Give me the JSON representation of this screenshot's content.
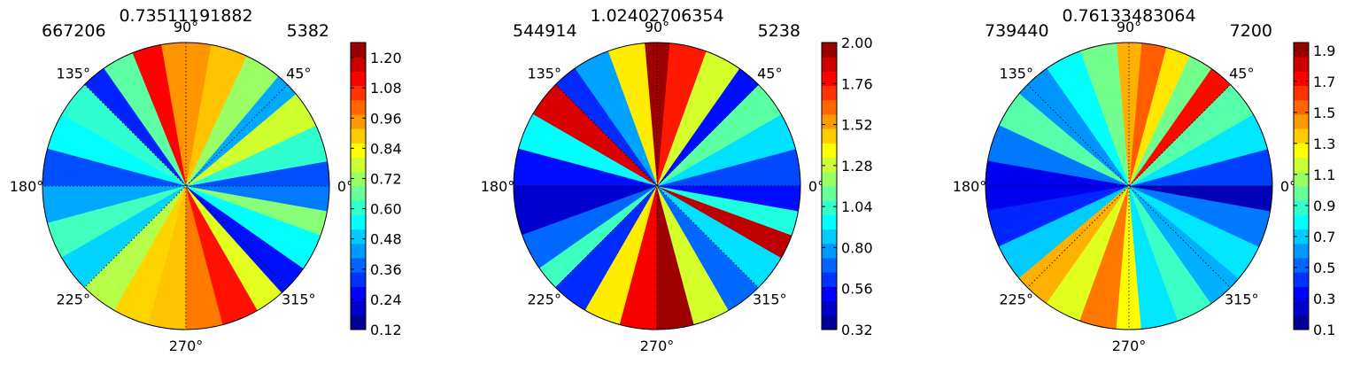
{
  "chart_data": [
    {
      "type": "polar-contour",
      "title": "0.73511191882",
      "corner_left": "667206",
      "corner_right": "5382",
      "angle_labels": [
        "0°",
        "45°",
        "90°",
        "135°",
        "180°",
        "225°",
        "270°",
        "315°"
      ],
      "colorbar_ticks": [
        "0.12",
        "0.24",
        "0.36",
        "0.48",
        "0.60",
        "0.72",
        "0.84",
        "0.96",
        "1.08",
        "1.20"
      ],
      "clim": [
        0.12,
        1.26
      ],
      "radial_grid": false,
      "colormap": "jet",
      "sectors": [
        {
          "start": 0,
          "end": 10,
          "value": 0.35
        },
        {
          "start": 10,
          "end": 25,
          "value": 0.6
        },
        {
          "start": 25,
          "end": 40,
          "value": 0.78
        },
        {
          "start": 40,
          "end": 50,
          "value": 0.45
        },
        {
          "start": 50,
          "end": 65,
          "value": 0.72
        },
        {
          "start": 65,
          "end": 80,
          "value": 0.9
        },
        {
          "start": 80,
          "end": 100,
          "value": 0.95
        },
        {
          "start": 100,
          "end": 112,
          "value": 1.12
        },
        {
          "start": 112,
          "end": 125,
          "value": 0.65
        },
        {
          "start": 125,
          "end": 135,
          "value": 0.3
        },
        {
          "start": 135,
          "end": 150,
          "value": 0.6
        },
        {
          "start": 150,
          "end": 165,
          "value": 0.55
        },
        {
          "start": 165,
          "end": 180,
          "value": 0.35
        },
        {
          "start": 180,
          "end": 195,
          "value": 0.45
        },
        {
          "start": 195,
          "end": 210,
          "value": 0.62
        },
        {
          "start": 210,
          "end": 225,
          "value": 0.5
        },
        {
          "start": 225,
          "end": 240,
          "value": 0.75
        },
        {
          "start": 240,
          "end": 255,
          "value": 0.88
        },
        {
          "start": 255,
          "end": 270,
          "value": 0.9
        },
        {
          "start": 270,
          "end": 285,
          "value": 0.98
        },
        {
          "start": 285,
          "end": 300,
          "value": 1.1
        },
        {
          "start": 300,
          "end": 312,
          "value": 0.8
        },
        {
          "start": 312,
          "end": 325,
          "value": 0.28
        },
        {
          "start": 325,
          "end": 340,
          "value": 0.55
        },
        {
          "start": 340,
          "end": 350,
          "value": 0.7
        },
        {
          "start": 350,
          "end": 360,
          "value": 0.4
        }
      ]
    },
    {
      "type": "polar-contour",
      "title": "1.02402706354",
      "corner_left": "544914",
      "corner_right": "5238",
      "angle_labels": [
        "0°",
        "45°",
        "90°",
        "135°",
        "180°",
        "225°",
        "270°",
        "315°"
      ],
      "colorbar_ticks": [
        "0.32",
        "0.56",
        "0.80",
        "1.04",
        "1.28",
        "1.52",
        "1.76",
        "2.00"
      ],
      "clim": [
        0.32,
        2.0
      ],
      "radial_grid": false,
      "colormap": "jet",
      "sectors": [
        {
          "start": 0,
          "end": 15,
          "value": 0.65
        },
        {
          "start": 15,
          "end": 30,
          "value": 0.9
        },
        {
          "start": 30,
          "end": 45,
          "value": 1.1
        },
        {
          "start": 45,
          "end": 55,
          "value": 0.55
        },
        {
          "start": 55,
          "end": 70,
          "value": 1.3
        },
        {
          "start": 70,
          "end": 85,
          "value": 1.75
        },
        {
          "start": 85,
          "end": 95,
          "value": 1.95
        },
        {
          "start": 95,
          "end": 110,
          "value": 1.4
        },
        {
          "start": 110,
          "end": 125,
          "value": 0.8
        },
        {
          "start": 125,
          "end": 135,
          "value": 0.6
        },
        {
          "start": 135,
          "end": 150,
          "value": 1.85
        },
        {
          "start": 150,
          "end": 165,
          "value": 0.95
        },
        {
          "start": 165,
          "end": 180,
          "value": 0.55
        },
        {
          "start": 180,
          "end": 200,
          "value": 0.45
        },
        {
          "start": 200,
          "end": 215,
          "value": 0.7
        },
        {
          "start": 215,
          "end": 225,
          "value": 1.05
        },
        {
          "start": 225,
          "end": 240,
          "value": 0.6
        },
        {
          "start": 240,
          "end": 255,
          "value": 1.4
        },
        {
          "start": 255,
          "end": 270,
          "value": 1.8
        },
        {
          "start": 270,
          "end": 285,
          "value": 1.95
        },
        {
          "start": 285,
          "end": 300,
          "value": 1.3
        },
        {
          "start": 300,
          "end": 315,
          "value": 0.7
        },
        {
          "start": 315,
          "end": 330,
          "value": 0.9
        },
        {
          "start": 330,
          "end": 340,
          "value": 1.9
        },
        {
          "start": 340,
          "end": 350,
          "value": 1.0
        },
        {
          "start": 350,
          "end": 360,
          "value": 0.55
        }
      ]
    },
    {
      "type": "polar-contour",
      "title": "0.76133483064",
      "corner_left": "739440",
      "corner_right": "7200",
      "angle_labels": [
        "0°",
        "45°",
        "90°",
        "135°",
        "180°",
        "225°",
        "270°",
        "315°"
      ],
      "colorbar_ticks": [
        "0.1",
        "0.3",
        "0.5",
        "0.7",
        "0.9",
        "1.1",
        "1.3",
        "1.5",
        "1.7",
        "1.9"
      ],
      "clim": [
        0.1,
        1.95
      ],
      "radial_grid": false,
      "colormap": "jet",
      "sectors": [
        {
          "start": 0,
          "end": 15,
          "value": 0.45
        },
        {
          "start": 15,
          "end": 30,
          "value": 0.75
        },
        {
          "start": 30,
          "end": 45,
          "value": 0.95
        },
        {
          "start": 45,
          "end": 55,
          "value": 1.7
        },
        {
          "start": 55,
          "end": 65,
          "value": 1.0
        },
        {
          "start": 65,
          "end": 75,
          "value": 1.3
        },
        {
          "start": 75,
          "end": 85,
          "value": 1.55
        },
        {
          "start": 85,
          "end": 95,
          "value": 1.4
        },
        {
          "start": 95,
          "end": 110,
          "value": 1.0
        },
        {
          "start": 110,
          "end": 125,
          "value": 0.8
        },
        {
          "start": 125,
          "end": 140,
          "value": 0.6
        },
        {
          "start": 140,
          "end": 155,
          "value": 0.95
        },
        {
          "start": 155,
          "end": 170,
          "value": 0.55
        },
        {
          "start": 170,
          "end": 190,
          "value": 0.3
        },
        {
          "start": 190,
          "end": 205,
          "value": 0.4
        },
        {
          "start": 205,
          "end": 220,
          "value": 0.7
        },
        {
          "start": 220,
          "end": 235,
          "value": 1.4
        },
        {
          "start": 235,
          "end": 250,
          "value": 1.2
        },
        {
          "start": 250,
          "end": 265,
          "value": 1.5
        },
        {
          "start": 265,
          "end": 275,
          "value": 1.25
        },
        {
          "start": 275,
          "end": 290,
          "value": 0.75
        },
        {
          "start": 290,
          "end": 305,
          "value": 0.9
        },
        {
          "start": 305,
          "end": 320,
          "value": 0.65
        },
        {
          "start": 320,
          "end": 335,
          "value": 0.75
        },
        {
          "start": 335,
          "end": 350,
          "value": 0.55
        },
        {
          "start": 350,
          "end": 360,
          "value": 0.2
        }
      ]
    }
  ]
}
